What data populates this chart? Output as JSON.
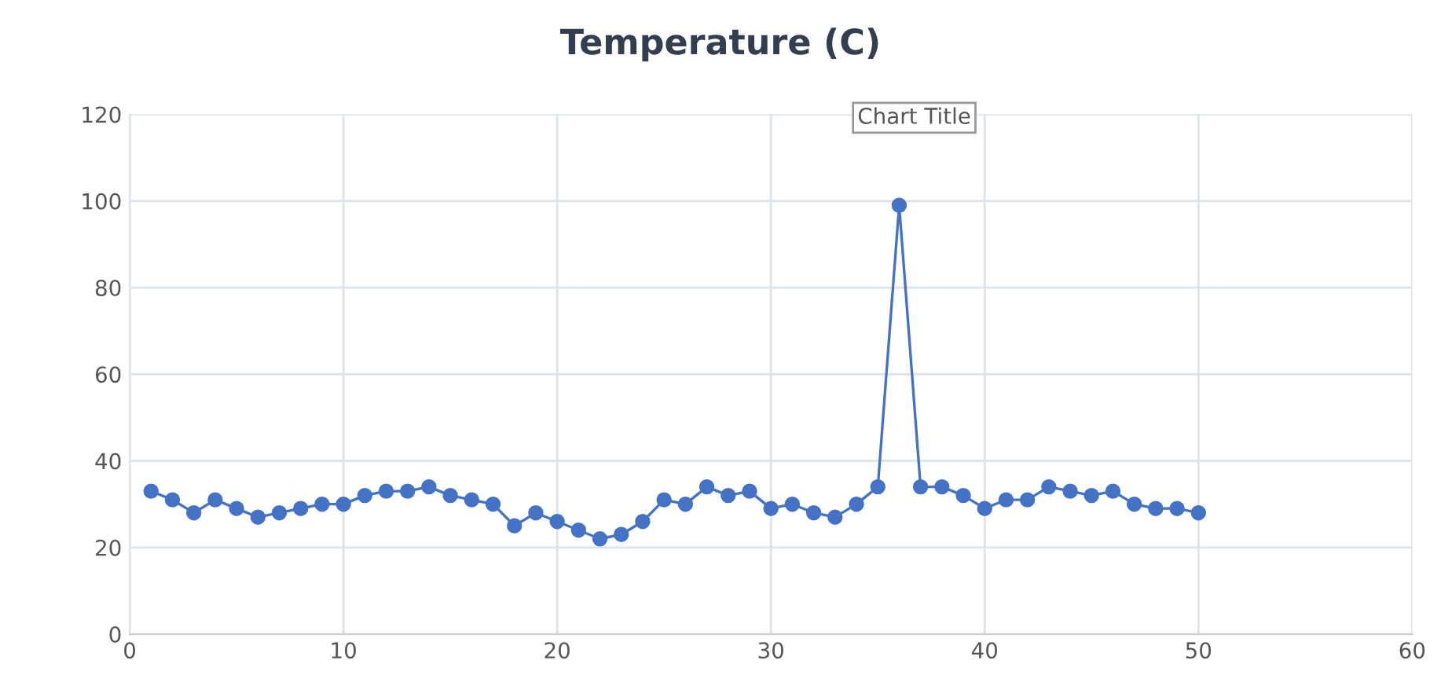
{
  "chart_data": {
    "type": "line",
    "title": "Temperature (C)",
    "x": [
      1,
      2,
      3,
      4,
      5,
      6,
      7,
      8,
      9,
      10,
      11,
      12,
      13,
      14,
      15,
      16,
      17,
      18,
      19,
      20,
      21,
      22,
      23,
      24,
      25,
      26,
      27,
      28,
      29,
      30,
      31,
      32,
      33,
      34,
      35,
      36,
      37,
      38,
      39,
      40,
      41,
      42,
      43,
      44,
      45,
      46,
      47,
      48,
      49,
      50
    ],
    "series": [
      {
        "color": "#4472c4",
        "values": [
          33,
          31,
          28,
          31,
          29,
          27,
          28,
          29,
          30,
          30,
          32,
          33,
          33,
          34,
          32,
          31,
          30,
          25,
          28,
          26,
          24,
          22,
          23,
          26,
          31,
          30,
          34,
          32,
          33,
          29,
          30,
          28,
          27,
          30,
          34,
          99,
          34,
          34,
          32,
          29,
          31,
          31,
          34,
          33,
          32,
          33,
          30,
          29,
          29,
          28
        ]
      }
    ],
    "xlim": [
      0,
      60
    ],
    "xticks": [
      0,
      10,
      20,
      30,
      40,
      50,
      60
    ],
    "ylim": [
      0,
      120
    ],
    "yticks": [
      0,
      20,
      40,
      60,
      80,
      100,
      120
    ],
    "grid": true,
    "marker": "circle",
    "line_style": "solid",
    "legend": false,
    "annotations": [
      "Chart Title"
    ]
  }
}
